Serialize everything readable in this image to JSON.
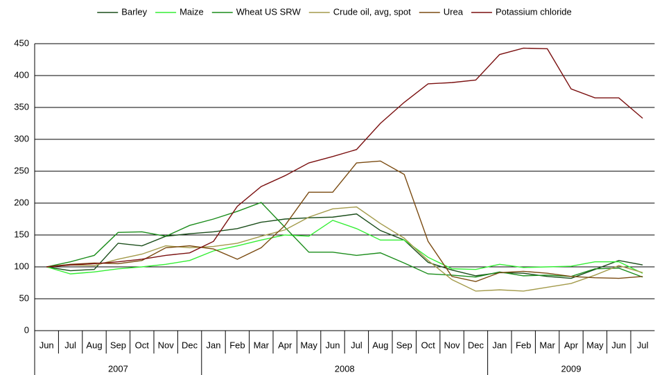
{
  "chart_data": {
    "type": "line",
    "categories": [
      "Jun",
      "Jul",
      "Aug",
      "Sep",
      "Oct",
      "Nov",
      "Dec",
      "Jan",
      "Feb",
      "Mar",
      "Apr",
      "May",
      "Jun",
      "Jul",
      "Aug",
      "Sep",
      "Oct",
      "Nov",
      "Dec",
      "Jan",
      "Feb",
      "Mar",
      "Apr",
      "May",
      "Jun",
      "Jul"
    ],
    "years": [
      "2007",
      null,
      null,
      null,
      null,
      null,
      null,
      "2008",
      null,
      null,
      null,
      null,
      null,
      null,
      null,
      null,
      null,
      null,
      null,
      "2009",
      null,
      null,
      null,
      null,
      null,
      null
    ],
    "ylim": [
      0,
      450
    ],
    "yticks": [
      0,
      50,
      100,
      150,
      200,
      250,
      300,
      350,
      400,
      450
    ],
    "grid": true,
    "legend": "top",
    "series": [
      {
        "name": "Barley",
        "color": "#1a4d1a",
        "values": [
          100,
          94,
          96,
          137,
          133,
          148,
          152,
          155,
          160,
          170,
          175,
          177,
          178,
          183,
          157,
          142,
          107,
          95,
          86,
          91,
          90,
          85,
          82,
          96,
          110,
          103
        ]
      },
      {
        "name": "Maize",
        "color": "#33ee33",
        "values": [
          100,
          89,
          92,
          97,
          100,
          104,
          110,
          125,
          133,
          142,
          150,
          148,
          173,
          160,
          142,
          142,
          115,
          97,
          96,
          104,
          99,
          100,
          101,
          108,
          108,
          90
        ]
      },
      {
        "name": "Wheat US SRW",
        "color": "#1a8c1a",
        "values": [
          100,
          108,
          118,
          154,
          155,
          148,
          165,
          175,
          187,
          201,
          162,
          123,
          123,
          118,
          122,
          106,
          89,
          87,
          84,
          92,
          86,
          87,
          85,
          97,
          98,
          84
        ]
      },
      {
        "name": "Crude oil, avg, spot",
        "color": "#a39a4a",
        "values": [
          100,
          103,
          102,
          112,
          120,
          133,
          130,
          132,
          137,
          148,
          158,
          178,
          191,
          194,
          168,
          145,
          110,
          80,
          62,
          64,
          62,
          68,
          74,
          87,
          102,
          91
        ]
      },
      {
        "name": "Urea",
        "color": "#7a4a10",
        "values": [
          100,
          104,
          106,
          105,
          110,
          130,
          133,
          128,
          112,
          130,
          165,
          217,
          217,
          263,
          266,
          245,
          140,
          85,
          77,
          91,
          93,
          90,
          85,
          83,
          82,
          85
        ]
      },
      {
        "name": "Potassium chloride",
        "color": "#7a0f0f",
        "values": [
          100,
          103,
          105,
          108,
          112,
          118,
          122,
          140,
          195,
          226,
          243,
          263,
          273,
          284,
          325,
          358,
          387,
          389,
          393,
          433,
          443,
          442,
          379,
          365,
          365,
          333
        ]
      }
    ]
  }
}
